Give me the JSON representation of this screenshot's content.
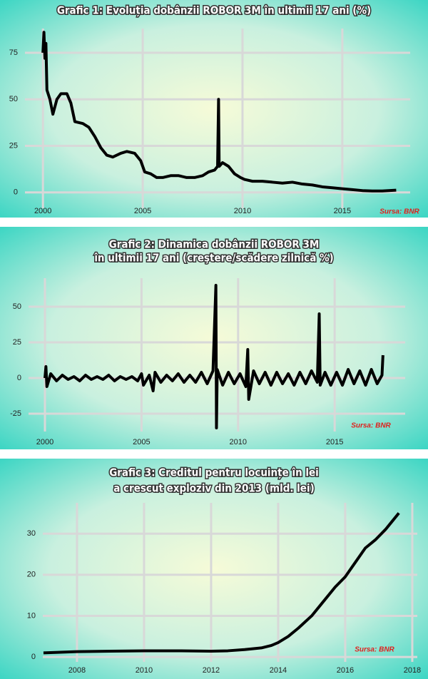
{
  "chart_data": [
    {
      "type": "line",
      "title": "Grafic 1: Evoluția dobânzii ROBOR 3M în ultimii 17 ani (%)",
      "source": "Sursa: BNR",
      "color": "#000000",
      "grid": true,
      "xlim": [
        1999.1,
        2018.4
      ],
      "xticks": [
        2000,
        2005,
        2010,
        2015
      ],
      "ylim": [
        -8.5,
        88
      ],
      "yticks": [
        0,
        25,
        50,
        75
      ],
      "x": [
        2000.0,
        2000.05,
        2000.1,
        2000.15,
        2000.2,
        2000.35,
        2000.5,
        2000.7,
        2000.9,
        2001.2,
        2001.4,
        2001.6,
        2002.0,
        2002.3,
        2002.6,
        2002.9,
        2003.2,
        2003.5,
        2003.9,
        2004.2,
        2004.6,
        2004.9,
        2005.1,
        2005.4,
        2005.7,
        2006.0,
        2006.4,
        2006.8,
        2007.2,
        2007.6,
        2008.0,
        2008.3,
        2008.6,
        2008.75,
        2008.8,
        2008.83,
        2009.0,
        2009.3,
        2009.6,
        2009.9,
        2010.1,
        2010.5,
        2011.0,
        2011.5,
        2012.0,
        2012.5,
        2013.0,
        2013.5,
        2014.0,
        2014.5,
        2015.0,
        2015.5,
        2016.0,
        2016.5,
        2017.0,
        2017.7
      ],
      "values": [
        75,
        86,
        72,
        80,
        55,
        50,
        42,
        50,
        53,
        53,
        48,
        38,
        37,
        35,
        30,
        24,
        20,
        19,
        21,
        22,
        21,
        17,
        11,
        10,
        8,
        8,
        9,
        9,
        8,
        8,
        9,
        11,
        12,
        14,
        50,
        14,
        16,
        14,
        10,
        8,
        7,
        6,
        6,
        5.5,
        5,
        5.5,
        4.5,
        4,
        3,
        2.5,
        2,
        1.5,
        1,
        0.8,
        0.8,
        1.2
      ]
    },
    {
      "type": "line",
      "title": [
        "Grafic 2: Dinamica dobânzii ROBOR 3M",
        "în ultimii 17 ani (creştere/scădere zilnică %)"
      ],
      "source": "Sursa: BNR",
      "color": "#000000",
      "grid": true,
      "xlim": [
        1999.15,
        2018.65
      ],
      "xticks": [
        2000,
        2005,
        2010,
        2015
      ],
      "ylim": [
        -37.5,
        70
      ],
      "yticks": [
        -25,
        0,
        25,
        50
      ],
      "x": [
        2000.0,
        2000.05,
        2000.1,
        2000.3,
        2000.6,
        2000.9,
        2001.2,
        2001.5,
        2001.8,
        2002.1,
        2002.4,
        2002.7,
        2003.0,
        2003.3,
        2003.6,
        2003.9,
        2004.2,
        2004.5,
        2004.8,
        2005.0,
        2005.1,
        2005.4,
        2005.6,
        2005.7,
        2006.0,
        2006.3,
        2006.6,
        2006.9,
        2007.2,
        2007.5,
        2007.8,
        2008.1,
        2008.4,
        2008.7,
        2008.85,
        2008.88,
        2008.92,
        2009.2,
        2009.5,
        2009.8,
        2010.1,
        2010.4,
        2010.5,
        2010.55,
        2010.8,
        2011.1,
        2011.4,
        2011.7,
        2012.0,
        2012.3,
        2012.6,
        2012.9,
        2013.2,
        2013.5,
        2013.8,
        2014.1,
        2014.2,
        2014.25,
        2014.5,
        2014.8,
        2015.1,
        2015.4,
        2015.7,
        2016.0,
        2016.3,
        2016.6,
        2016.9,
        2017.2,
        2017.45,
        2017.5
      ],
      "values": [
        0,
        8,
        -6,
        3,
        -2,
        2,
        -1,
        1,
        -2,
        2,
        -1,
        1,
        -1,
        2,
        -2,
        1,
        -1,
        1,
        -2,
        3,
        -5,
        2,
        -9,
        4,
        -3,
        2,
        -2,
        3,
        -3,
        2,
        -3,
        4,
        -4,
        5,
        65,
        -35,
        6,
        -5,
        4,
        -4,
        3,
        -6,
        20,
        -15,
        5,
        -4,
        4,
        -5,
        4,
        -4,
        3,
        -5,
        4,
        -4,
        5,
        -3,
        45,
        -5,
        4,
        -5,
        4,
        -5,
        6,
        -4,
        5,
        -5,
        6,
        -4,
        2,
        16
      ]
    },
    {
      "type": "line",
      "title": [
        "Grafic 3: Creditul pentru locuințe în lei",
        "a crescut exploziv din 2013 (mld. lei)"
      ],
      "source": "Sursa: BNR",
      "color": "#000000",
      "grid": true,
      "xlim": [
        2006.98,
        2018.15
      ],
      "xticks": [
        2008,
        2010,
        2012,
        2014,
        2016,
        2018
      ],
      "ylim": [
        -1.2,
        37.5
      ],
      "yticks": [
        0,
        10,
        20,
        30
      ],
      "x": [
        2007.0,
        2008,
        2009,
        2010,
        2011,
        2012,
        2012.5,
        2013,
        2013.5,
        2013.8,
        2014,
        2014.3,
        2014.6,
        2015,
        2015.3,
        2015.7,
        2016,
        2016.3,
        2016.6,
        2016.9,
        2017.2,
        2017.4,
        2017.6
      ],
      "values": [
        1,
        1.3,
        1.4,
        1.5,
        1.5,
        1.4,
        1.5,
        1.8,
        2.2,
        2.8,
        3.5,
        5,
        7,
        10,
        13,
        17,
        19.5,
        23,
        26.5,
        28.5,
        31,
        33,
        35
      ]
    }
  ]
}
